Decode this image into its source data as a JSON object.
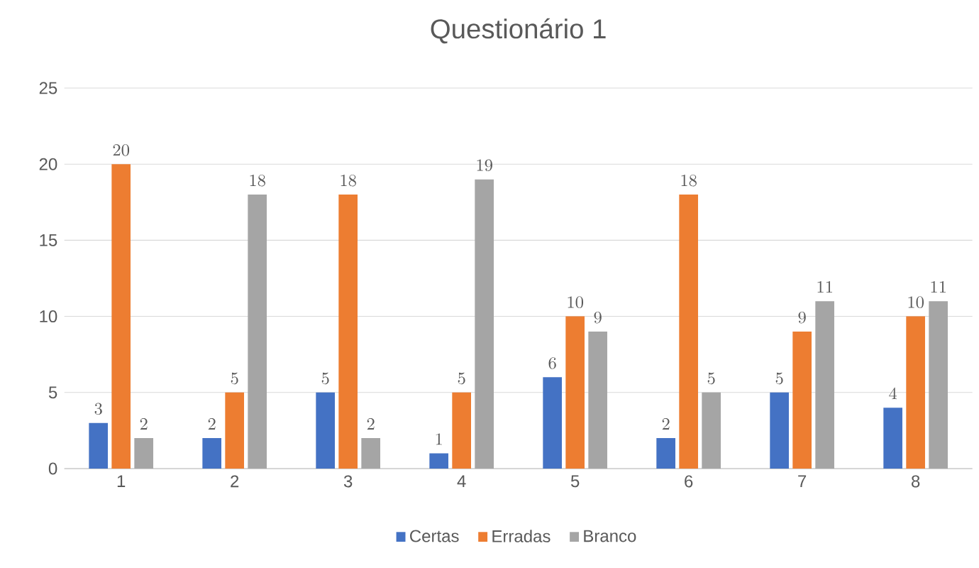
{
  "chart_data": {
    "type": "bar",
    "title": "Questionário 1",
    "categories": [
      "1",
      "2",
      "3",
      "4",
      "5",
      "6",
      "7",
      "8"
    ],
    "series": [
      {
        "name": "Certas",
        "color": "#4472c4",
        "values": [
          3,
          2,
          5,
          1,
          6,
          2,
          5,
          4
        ]
      },
      {
        "name": "Erradas",
        "color": "#ed7d31",
        "values": [
          20,
          5,
          18,
          5,
          10,
          18,
          9,
          10
        ]
      },
      {
        "name": "Branco",
        "color": "#a5a5a5",
        "values": [
          2,
          18,
          2,
          19,
          9,
          5,
          11,
          11
        ]
      }
    ],
    "ylim": [
      0,
      25
    ],
    "yticks": [
      0,
      5,
      10,
      15,
      20,
      25
    ],
    "grid": "y",
    "legend": "bottom",
    "data_labels": true
  }
}
